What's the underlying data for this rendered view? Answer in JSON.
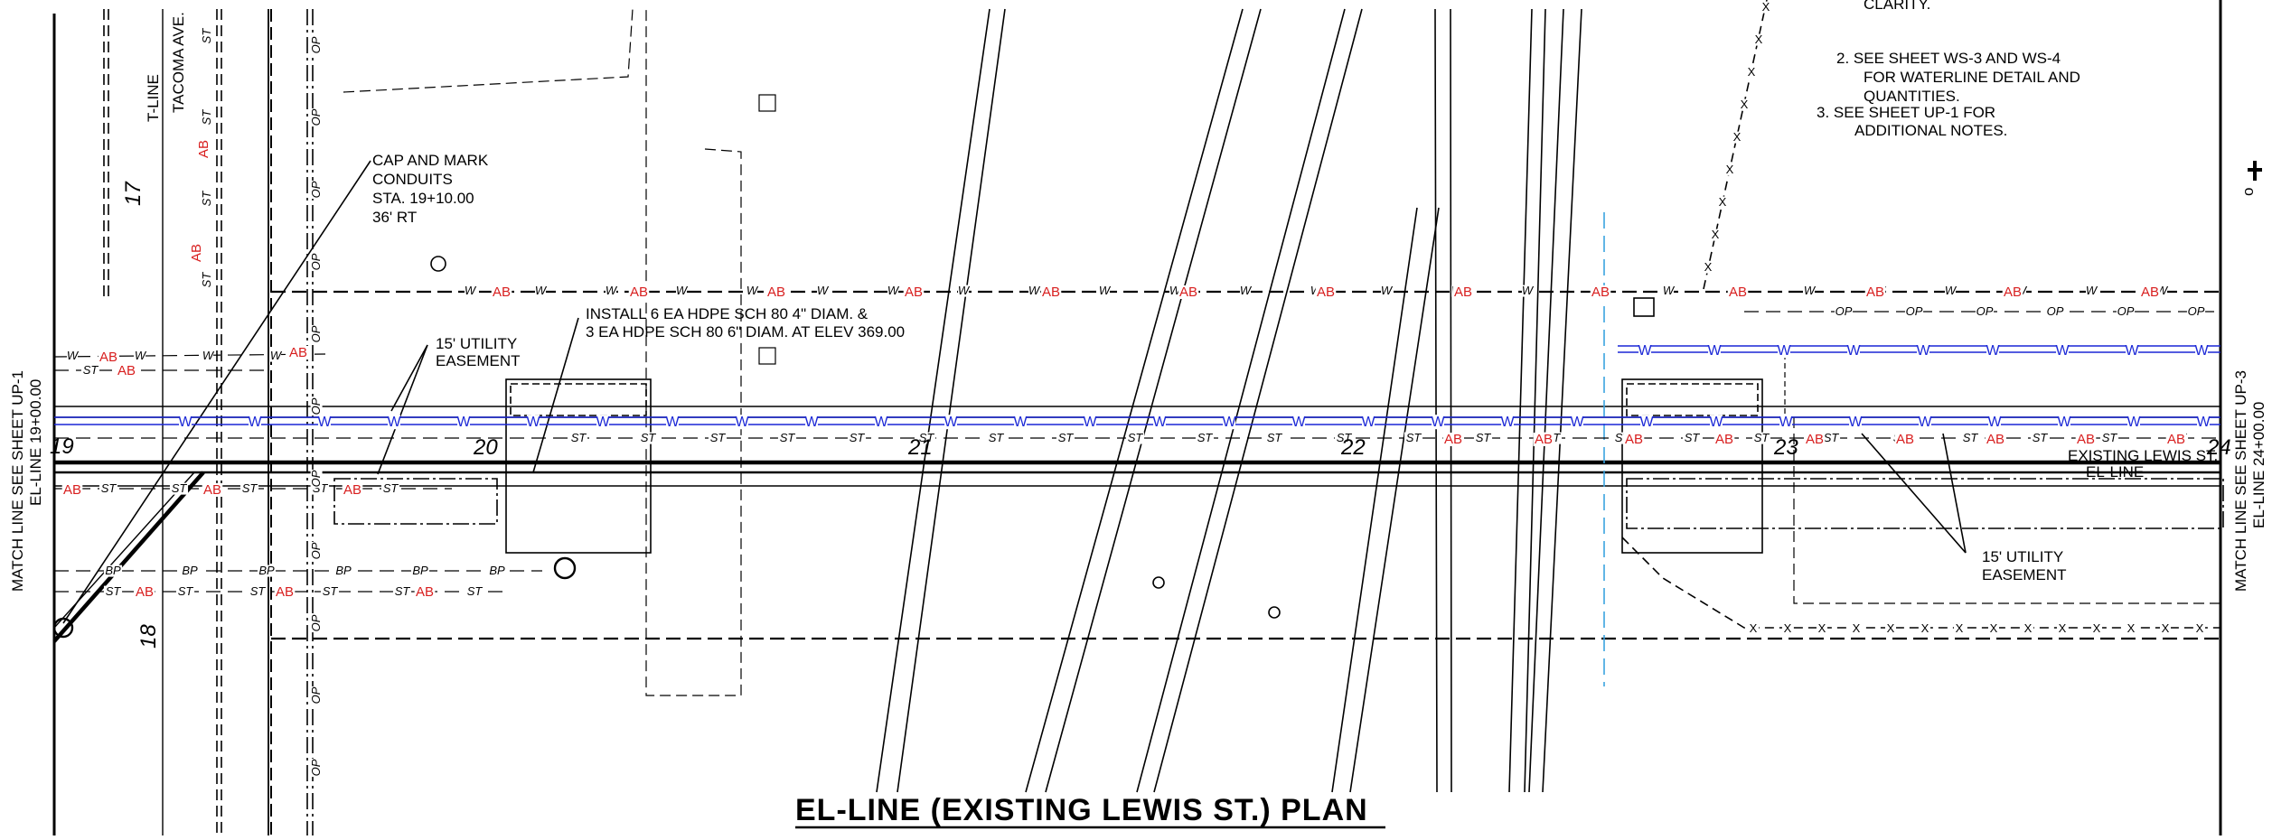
{
  "title": "EL-LINE  (EXISTING  LEWIS  ST.) PLAN",
  "match_line_left": {
    "line1": "MATCH  LINE  SEE  SHEET  UP-1",
    "line2": "EL-LINE  19+00.00"
  },
  "match_line_right": {
    "line1": "MATCH  LINE  SEE  SHEET  UP-3",
    "line2": "EL-LINE  24+00.00"
  },
  "street_labels": {
    "t_line": "T-LINE",
    "tacoma": "TACOMA  AVE.",
    "existing_lewis": "EXISTING  LEWIS  ST.",
    "el_line": "EL-LINE"
  },
  "stations": [
    "17",
    "18",
    "19",
    "20",
    "21",
    "22",
    "23",
    "24"
  ],
  "callouts": {
    "cap_mark": [
      "CAP  AND  MARK",
      "CONDUITS",
      "STA.  19+10.00",
      "36' RT"
    ],
    "install": [
      "INSTALL  6  EA  HDPE  SCH  80  4\" DIAM. &",
      "3  EA  HDPE  SCH  80  6\" DIAM. AT  ELEV  369.00"
    ],
    "easement_left": [
      "15' UTILITY",
      "EASEMENT"
    ],
    "easement_right": [
      "15' UTILITY",
      "EASEMENT"
    ]
  },
  "notes": {
    "note1_tail": "CLARITY.",
    "note2": [
      "2.  SEE  SHEET  WS-3  AND  WS-4",
      "FOR  WATERLINE  DETAIL  AND",
      "QUANTITIES."
    ],
    "note3": [
      "3. SEE  SHEET  UP-1  FOR",
      "ADDITIONAL  NOTES."
    ]
  },
  "line_tags": {
    "water": "W",
    "storm": "ST",
    "abandoned": "AB",
    "overhead_power": "OP",
    "buried_power": "BP"
  },
  "north_arrow_label": "o",
  "colors": {
    "abandoned": "#d81e1e",
    "water": "#1a27d6",
    "reclaimed": "#3aa3e0",
    "linework": "#000000"
  }
}
